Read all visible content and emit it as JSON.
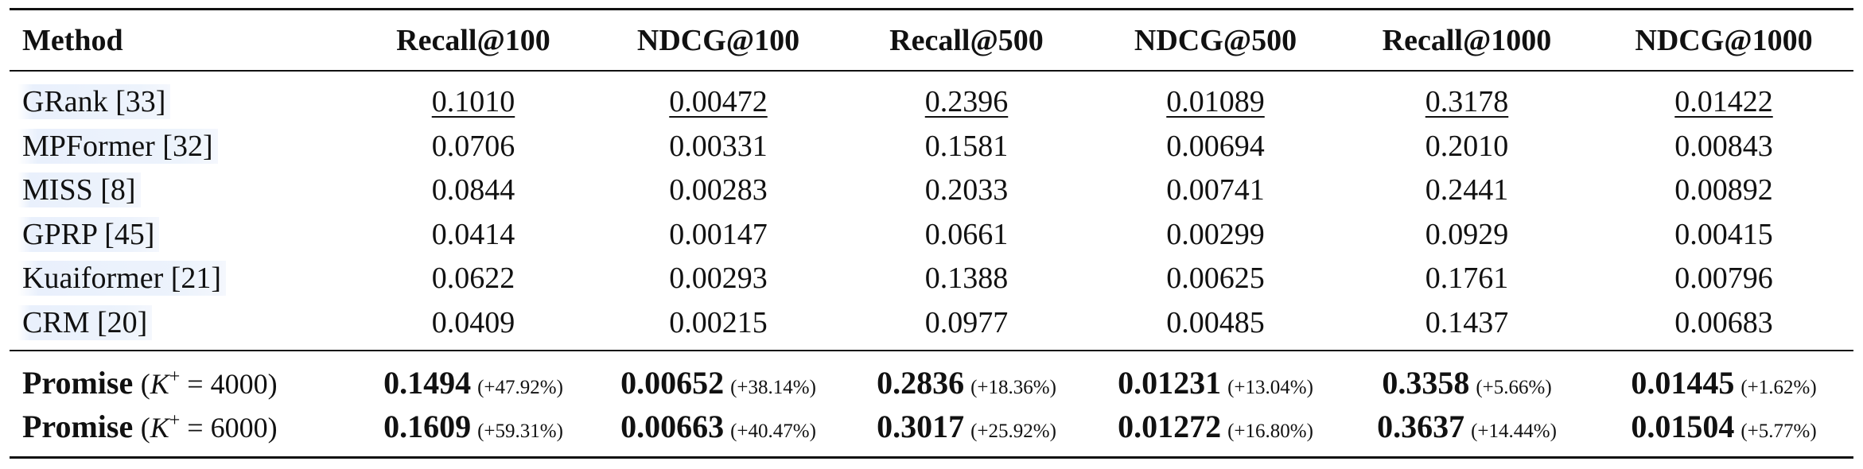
{
  "table": {
    "headers": [
      "Method",
      "Recall@100",
      "NDCG@100",
      "Recall@500",
      "NDCG@500",
      "Recall@1000",
      "NDCG@1000"
    ],
    "baselines": [
      {
        "method": "GRank [33]",
        "values": [
          "0.1010",
          "0.00472",
          "0.2396",
          "0.01089",
          "0.3178",
          "0.01422"
        ]
      },
      {
        "method": "MPFormer [32]",
        "values": [
          "0.0706",
          "0.00331",
          "0.1581",
          "0.00694",
          "0.2010",
          "0.00843"
        ]
      },
      {
        "method": "MISS [8]",
        "values": [
          "0.0844",
          "0.00283",
          "0.2033",
          "0.00741",
          "0.2441",
          "0.00892"
        ]
      },
      {
        "method": "GPRP [45]",
        "values": [
          "0.0414",
          "0.00147",
          "0.0661",
          "0.00299",
          "0.0929",
          "0.00415"
        ]
      },
      {
        "method": "Kuaiformer [21]",
        "values": [
          "0.0622",
          "0.00293",
          "0.1388",
          "0.00625",
          "0.1761",
          "0.00796"
        ]
      },
      {
        "method": "CRM [20]",
        "values": [
          "0.0409",
          "0.00215",
          "0.0977",
          "0.00485",
          "0.1437",
          "0.00683"
        ]
      }
    ],
    "ours": [
      {
        "name": "Promise",
        "param_open": "(",
        "param_symbol": "K",
        "param_sup": "+",
        "param_rest": " = 4000)",
        "values": [
          "0.1494",
          "0.00652",
          "0.2836",
          "0.01231",
          "0.3358",
          "0.01445"
        ],
        "gains": [
          "(+47.92%)",
          "(+38.14%)",
          "(+18.36%)",
          "(+13.04%)",
          "(+5.66%)",
          "(+1.62%)"
        ]
      },
      {
        "name": "Promise",
        "param_open": "(",
        "param_symbol": "K",
        "param_sup": "+",
        "param_rest": " = 6000)",
        "values": [
          "0.1609",
          "0.00663",
          "0.3017",
          "0.01272",
          "0.3637",
          "0.01504"
        ],
        "gains": [
          "(+59.31%)",
          "(+40.47%)",
          "(+25.92%)",
          "(+16.80%)",
          "(+14.44%)",
          "(+5.77%)"
        ]
      }
    ]
  }
}
